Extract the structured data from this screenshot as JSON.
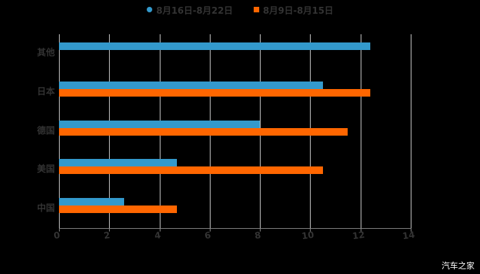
{
  "legend": [
    {
      "label": "8月16日-8月22日",
      "color": "#3399cc",
      "marker": "circle"
    },
    {
      "label": "8月9日-8月15日",
      "color": "#ff6600",
      "marker": "square"
    }
  ],
  "watermark": "汽车之家",
  "chart_data": {
    "type": "bar",
    "orientation": "horizontal",
    "title": "",
    "categories": [
      "其他",
      "日本",
      "德国",
      "美国",
      "中国"
    ],
    "series": [
      {
        "name": "8月16日-8月22日",
        "color": "#3399cc",
        "values": [
          12.4,
          10.5,
          8.0,
          4.7,
          2.6
        ]
      },
      {
        "name": "8月9日-8月15日",
        "color": "#ff6600",
        "values": [
          null,
          12.4,
          11.5,
          10.5,
          4.7
        ]
      }
    ],
    "xlabel": "",
    "ylabel": "",
    "xlim": [
      0,
      14
    ],
    "xticks": [
      "0",
      "2",
      "4",
      "6",
      "8",
      "10",
      "12",
      "14"
    ],
    "grid": true,
    "legend_position": "top"
  }
}
